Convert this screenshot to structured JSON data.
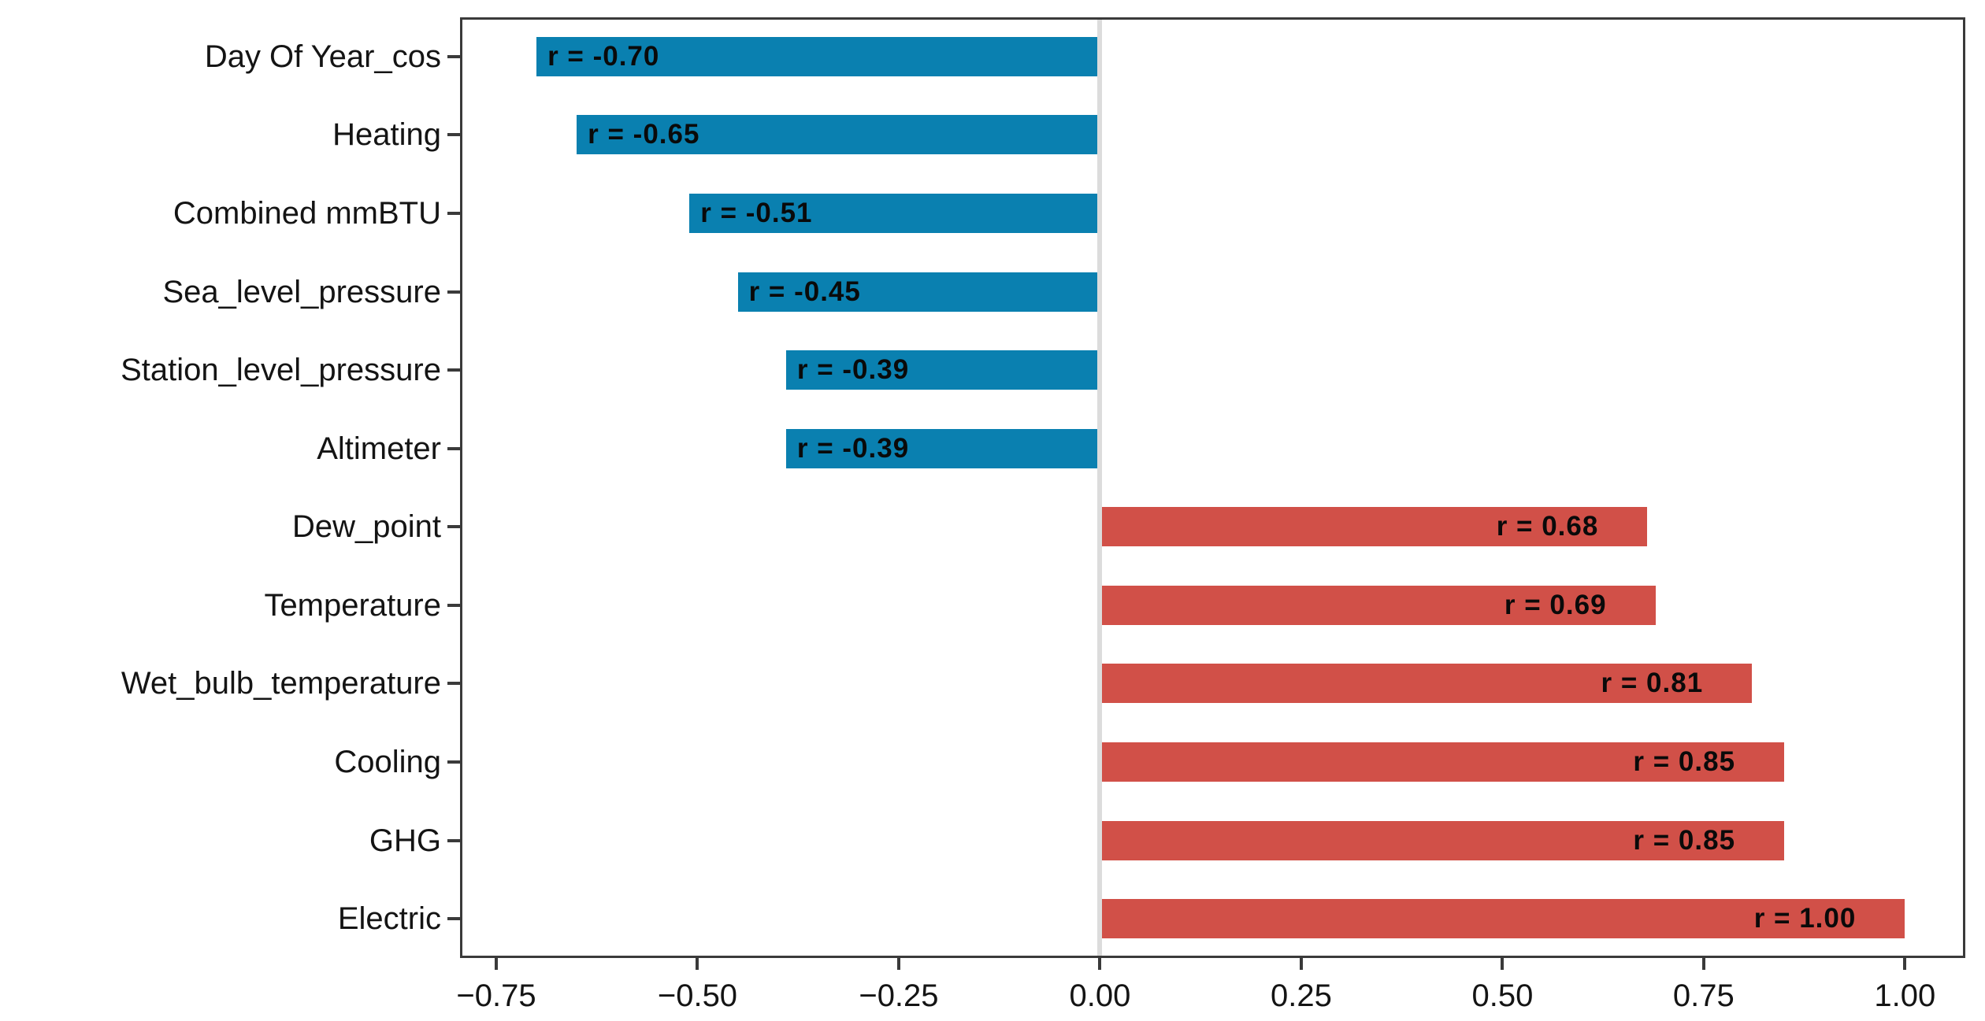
{
  "chart_data": {
    "type": "bar",
    "orientation": "horizontal",
    "title": "",
    "xlabel": "",
    "ylabel": "",
    "categories": [
      "Day Of Year_cos",
      "Heating",
      "Combined mmBTU",
      "Sea_level_pressure",
      "Station_level_pressure",
      "Altimeter",
      "Dew_point",
      "Temperature",
      "Wet_bulb_temperature",
      "Cooling",
      "GHG",
      "Electric"
    ],
    "values": [
      -0.7,
      -0.65,
      -0.51,
      -0.45,
      -0.39,
      -0.39,
      0.68,
      0.69,
      0.81,
      0.85,
      0.85,
      1.0
    ],
    "bar_labels": [
      "r = -0.70",
      "r = -0.65",
      "r = -0.51",
      "r = -0.45",
      "r = -0.39",
      "r = -0.39",
      "r = 0.68",
      "r = 0.69",
      "r = 0.81",
      "r = 0.85",
      "r = 0.85",
      "r = 1.00"
    ],
    "x_ticks": [
      {
        "value": -0.75,
        "label": "−0.75"
      },
      {
        "value": -0.5,
        "label": "−0.50"
      },
      {
        "value": -0.25,
        "label": "−0.25"
      },
      {
        "value": 0.0,
        "label": "0.00"
      },
      {
        "value": 0.25,
        "label": "0.25"
      },
      {
        "value": 0.5,
        "label": "0.50"
      },
      {
        "value": 0.75,
        "label": "0.75"
      },
      {
        "value": 1.0,
        "label": "1.00"
      }
    ],
    "xlim": [
      -0.795,
      1.075
    ],
    "grid": false,
    "legend": "none",
    "colors": {
      "negative_bar": "#0a80b0",
      "positive_bar": "#d15048",
      "zero_line": "#dcdcdc",
      "axis": "#3a3a3a",
      "text": "#141414",
      "bar_label_text": "#0a0a0a",
      "background": "#ffffff"
    }
  }
}
